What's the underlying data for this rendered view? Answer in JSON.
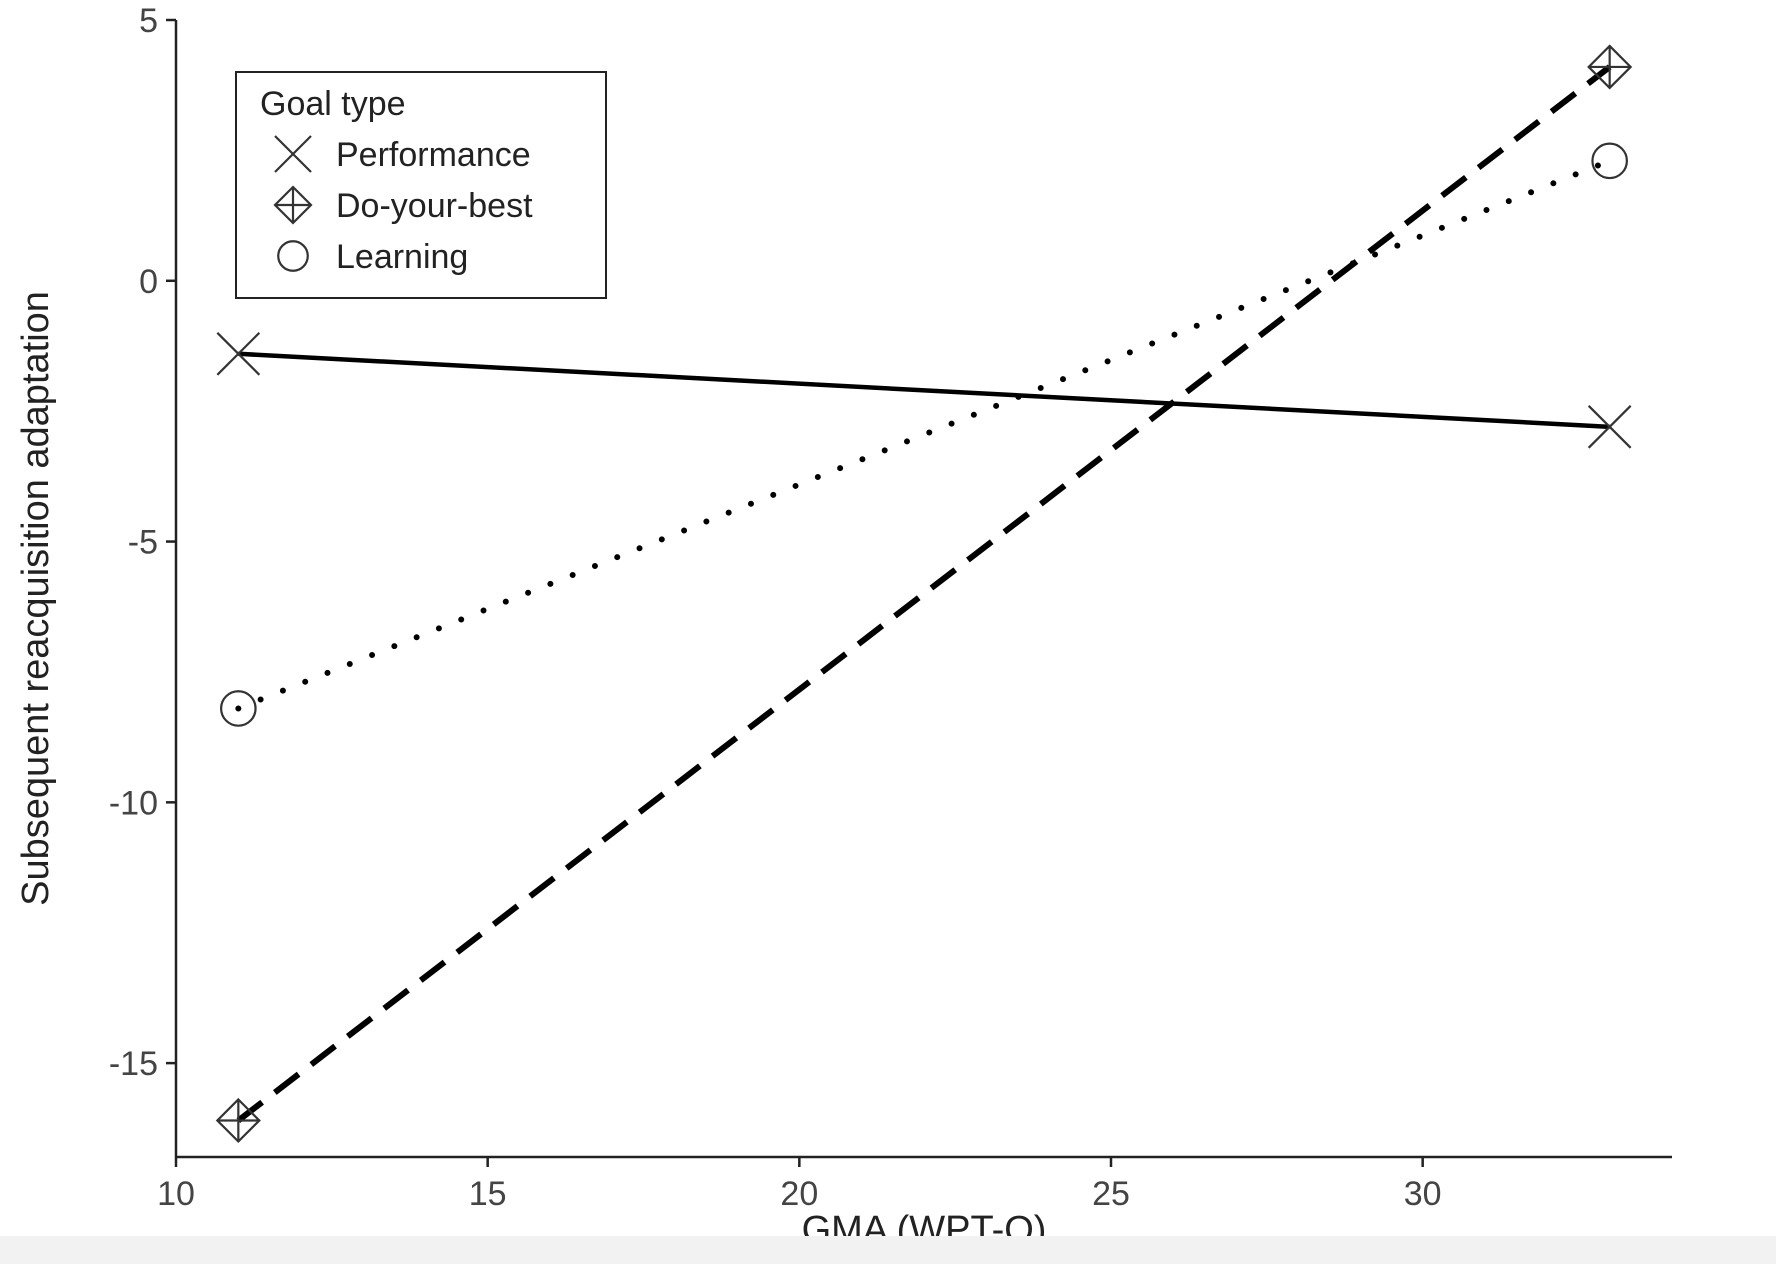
{
  "chart_data": {
    "type": "line",
    "title": "",
    "xlabel": "GMA (WPT-Q)",
    "ylabel": "Subsequent reacquisition adaptation",
    "xlim": [
      10,
      34
    ],
    "ylim": [
      -16.8,
      5
    ],
    "xticks": [
      10,
      15,
      20,
      25,
      30
    ],
    "yticks": [
      5,
      0,
      -5,
      -10,
      -15
    ],
    "grid": false,
    "legend": {
      "title": "Goal type",
      "placement": "top-left"
    },
    "series": [
      {
        "name": "Performance",
        "x": [
          11,
          33
        ],
        "y": [
          -1.4,
          -2.8
        ],
        "linestyle": "solid",
        "marker": "x"
      },
      {
        "name": "Do-your-best",
        "x": [
          11,
          33
        ],
        "y": [
          -16.1,
          4.1
        ],
        "linestyle": "dashed",
        "marker": "diamond-plus"
      },
      {
        "name": "Learning",
        "x": [
          11,
          33
        ],
        "y": [
          -8.2,
          2.3
        ],
        "linestyle": "dotted",
        "marker": "circle"
      }
    ]
  }
}
